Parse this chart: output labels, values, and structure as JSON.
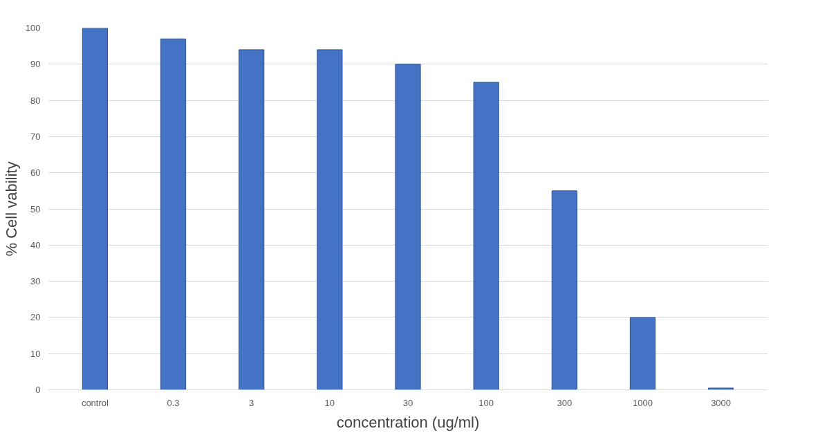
{
  "chart_data": {
    "type": "bar",
    "xlabel": "concentration (ug/ml)",
    "ylabel": "% Cell vability",
    "categories": [
      "control",
      "0.3",
      "3",
      "10",
      "30",
      "100",
      "300",
      "1000",
      "3000"
    ],
    "values": [
      100,
      97,
      94,
      94,
      90,
      85,
      55,
      20,
      0.5
    ],
    "color": "#4472c4",
    "ylim": [
      0,
      100
    ],
    "yticks": [
      0,
      10,
      20,
      30,
      40,
      50,
      60,
      70,
      80,
      90,
      100
    ],
    "grid": "y"
  }
}
